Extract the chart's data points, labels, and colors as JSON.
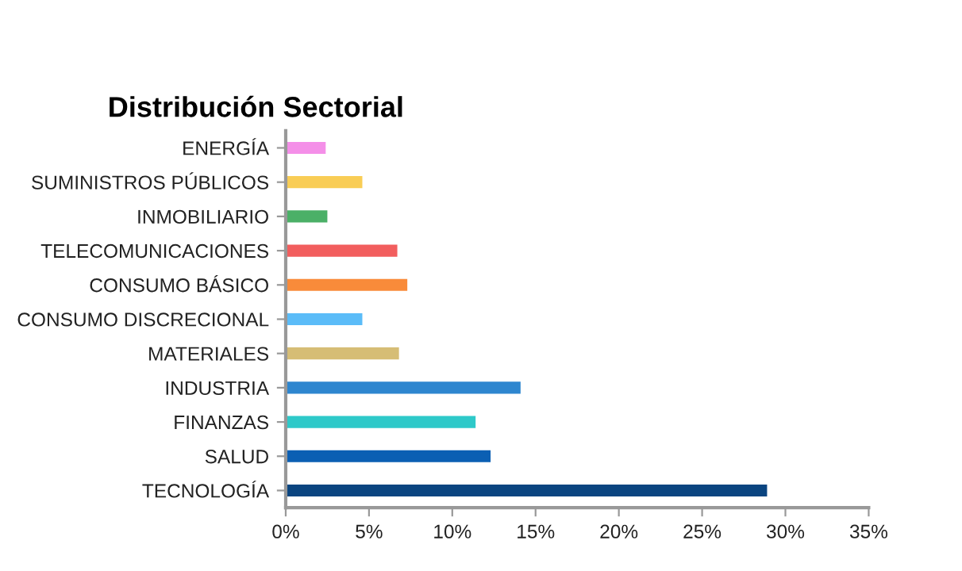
{
  "chart_data": {
    "type": "bar",
    "orientation": "horizontal",
    "title": "Distribución Sectorial",
    "categories": [
      "ENERGÍA",
      "SUMINISTROS PÚBLICOS",
      "INMOBILIARIO",
      "TELECOMUNICACIONES",
      "CONSUMO BÁSICO",
      "CONSUMO DISCRECIONAL",
      "MATERIALES",
      "INDUSTRIA",
      "FINANZAS",
      "SALUD",
      "TECNOLOGÍA"
    ],
    "values": [
      2.4,
      4.6,
      2.5,
      6.7,
      7.3,
      4.6,
      6.8,
      14.1,
      11.4,
      12.3,
      28.9
    ],
    "colors": [
      "#f48fe8",
      "#f9cd55",
      "#4bb067",
      "#f25e5e",
      "#f98b3a",
      "#5bbcf8",
      "#d6bd75",
      "#2e86cf",
      "#2ec9c9",
      "#0b5fb3",
      "#0a4580"
    ],
    "xlim": [
      0,
      35
    ],
    "xticks": [
      {
        "value": 0,
        "label": "0%"
      },
      {
        "value": 5,
        "label": "5%"
      },
      {
        "value": 10,
        "label": "10%"
      },
      {
        "value": 15,
        "label": "15%"
      },
      {
        "value": 20,
        "label": "20%"
      },
      {
        "value": 25,
        "label": "25%"
      },
      {
        "value": 30,
        "label": "30%"
      },
      {
        "value": 35,
        "label": "35%"
      }
    ],
    "grid": false,
    "legend": false
  }
}
